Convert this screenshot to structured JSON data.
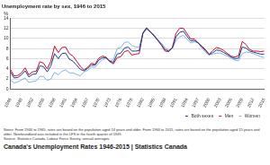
{
  "chart_data": {
    "type": "line",
    "title": "Unemployment rate by sex, 1946 to 2015",
    "y_label": "%",
    "x": [
      1946,
      1947,
      1948,
      1949,
      1950,
      1951,
      1952,
      1953,
      1954,
      1955,
      1956,
      1957,
      1958,
      1959,
      1960,
      1961,
      1962,
      1963,
      1964,
      1965,
      1966,
      1967,
      1968,
      1969,
      1970,
      1971,
      1972,
      1973,
      1974,
      1975,
      1976,
      1977,
      1978,
      1979,
      1980,
      1981,
      1982,
      1983,
      1984,
      1985,
      1986,
      1987,
      1988,
      1989,
      1990,
      1991,
      1992,
      1993,
      1994,
      1995,
      1996,
      1997,
      1998,
      1999,
      2000,
      2001,
      2002,
      2003,
      2004,
      2005,
      2006,
      2007,
      2008,
      2009,
      2010,
      2011,
      2012,
      2013,
      2014,
      2015
    ],
    "series": [
      {
        "name": "Both sexes",
        "color": "#1f3b8c",
        "values": [
          3.4,
          2.2,
          2.3,
          2.8,
          3.6,
          2.4,
          2.9,
          3.0,
          4.6,
          4.4,
          3.4,
          4.6,
          7.0,
          6.0,
          7.0,
          7.1,
          5.9,
          5.5,
          4.7,
          3.9,
          3.6,
          4.1,
          4.8,
          4.7,
          5.7,
          6.2,
          6.2,
          5.5,
          5.3,
          6.9,
          7.1,
          8.1,
          8.3,
          7.5,
          7.5,
          7.6,
          11.0,
          12.0,
          11.3,
          10.6,
          9.7,
          8.8,
          7.8,
          7.5,
          8.1,
          10.3,
          11.2,
          11.4,
          10.4,
          9.5,
          9.6,
          9.1,
          8.3,
          7.6,
          6.8,
          7.2,
          7.7,
          7.6,
          7.2,
          6.8,
          6.3,
          6.0,
          6.1,
          8.3,
          8.1,
          7.5,
          7.3,
          7.1,
          6.9,
          6.9
        ]
      },
      {
        "name": "Men",
        "color": "#c0102a",
        "values": [
          3.9,
          2.6,
          2.7,
          3.2,
          4.2,
          2.8,
          3.4,
          3.5,
          5.4,
          5.1,
          4.0,
          5.5,
          8.5,
          7.2,
          8.2,
          8.3,
          7.0,
          6.5,
          5.5,
          4.5,
          3.8,
          4.3,
          5.1,
          4.9,
          6.1,
          6.5,
          6.3,
          5.4,
          5.0,
          6.2,
          6.4,
          7.4,
          7.6,
          6.7,
          6.9,
          7.0,
          11.1,
          12.1,
          11.3,
          10.5,
          9.6,
          8.7,
          7.5,
          7.4,
          8.2,
          11.0,
          12.0,
          12.0,
          10.9,
          9.9,
          9.9,
          9.1,
          8.5,
          7.8,
          6.9,
          7.6,
          8.2,
          8.0,
          7.6,
          7.0,
          6.5,
          6.3,
          6.6,
          9.4,
          8.8,
          7.8,
          7.5,
          7.5,
          7.4,
          7.5
        ]
      },
      {
        "name": "Women",
        "color": "#7fb2e5",
        "values": [
          1.8,
          1.2,
          1.4,
          1.8,
          2.2,
          1.3,
          1.5,
          1.6,
          2.5,
          2.5,
          1.7,
          2.0,
          3.3,
          2.8,
          3.5,
          3.8,
          3.2,
          3.2,
          2.9,
          2.6,
          3.4,
          3.7,
          4.4,
          4.3,
          5.1,
          5.8,
          6.0,
          5.6,
          5.8,
          8.0,
          8.2,
          9.2,
          9.3,
          8.6,
          8.3,
          8.3,
          10.9,
          11.8,
          11.3,
          10.7,
          9.8,
          9.1,
          8.2,
          7.7,
          8.0,
          9.6,
          10.3,
          10.6,
          9.8,
          9.1,
          9.3,
          9.2,
          8.1,
          7.3,
          6.7,
          6.9,
          7.1,
          7.1,
          6.8,
          6.5,
          6.1,
          5.7,
          5.6,
          7.0,
          7.3,
          7.2,
          7.0,
          6.7,
          6.4,
          6.2
        ]
      }
    ],
    "xlim": [
      1946,
      2015
    ],
    "xticks": [
      1946,
      1949,
      1952,
      1955,
      1958,
      1961,
      1964,
      1967,
      1970,
      1973,
      1976,
      1979,
      1982,
      1985,
      1988,
      1991,
      1994,
      1997,
      2000,
      2003,
      2006,
      2009,
      2012,
      2015
    ],
    "ylim": [
      0,
      14
    ],
    "yticks": [
      0,
      2,
      4,
      6,
      8,
      10,
      12,
      14
    ],
    "grid": true,
    "legend": "bottom-right",
    "annotations": [
      "Notes: From 1946 to 1965, rates are based on the population aged 14 years and older. From 1966 to 2015, rates are based on the population aged 15 years and older. Newfoundland was included in the LFS in the fourth quarter of 1949.",
      "Source: Statistics Canada, Labour Force Survey, annual averages."
    ]
  },
  "caption": "Canada's Unemployment Rates 1946-2015 | Statistics Canada"
}
